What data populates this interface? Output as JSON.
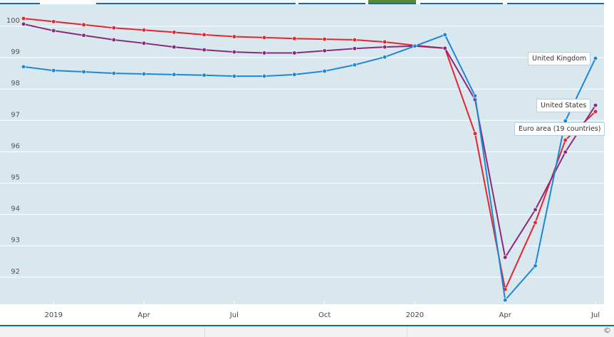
{
  "chart_data": {
    "type": "line",
    "x": [
      "2018-12",
      "2019-01",
      "2019-02",
      "2019-03",
      "2019-04",
      "2019-05",
      "2019-06",
      "2019-07",
      "2019-08",
      "2019-09",
      "2019-10",
      "2019-11",
      "2019-12",
      "2020-01",
      "2020-02",
      "2020-03",
      "2020-04",
      "2020-05",
      "2020-06",
      "2020-07"
    ],
    "xtick_labels": [
      {
        "at": "2019-01",
        "label": "2019"
      },
      {
        "at": "2019-04",
        "label": "Apr"
      },
      {
        "at": "2019-07",
        "label": "Jul"
      },
      {
        "at": "2019-10",
        "label": "Oct"
      },
      {
        "at": "2020-01",
        "label": "2020"
      },
      {
        "at": "2020-04",
        "label": "Apr"
      },
      {
        "at": "2020-07",
        "label": "Jul"
      }
    ],
    "yticks": [
      92,
      93,
      94,
      95,
      96,
      97,
      98,
      99,
      100
    ],
    "ylim": [
      91.1,
      100.35
    ],
    "grid": true,
    "series": [
      {
        "name": "Euro area (19 countries)",
        "color": "#e3262e",
        "values": [
          100.25,
          100.15,
          100.05,
          99.95,
          99.88,
          99.81,
          99.73,
          99.67,
          99.64,
          99.61,
          99.59,
          99.57,
          99.5,
          99.39,
          99.3,
          96.58,
          91.61,
          93.74,
          96.37,
          97.28
        ]
      },
      {
        "name": "United States",
        "color": "#8b2a7a",
        "values": [
          100.07,
          99.86,
          99.71,
          99.57,
          99.46,
          99.34,
          99.25,
          99.18,
          99.15,
          99.15,
          99.22,
          99.29,
          99.34,
          99.37,
          99.3,
          97.66,
          92.63,
          94.15,
          95.99,
          97.48
        ]
      },
      {
        "name": "United Kingdom",
        "color": "#1d87d6",
        "values": [
          98.71,
          98.59,
          98.55,
          98.5,
          98.48,
          98.46,
          98.44,
          98.41,
          98.41,
          98.46,
          98.57,
          98.77,
          99.02,
          99.37,
          99.73,
          97.78,
          91.27,
          92.36,
          96.98,
          98.98
        ]
      }
    ]
  },
  "footer": {
    "copyright": "©"
  }
}
